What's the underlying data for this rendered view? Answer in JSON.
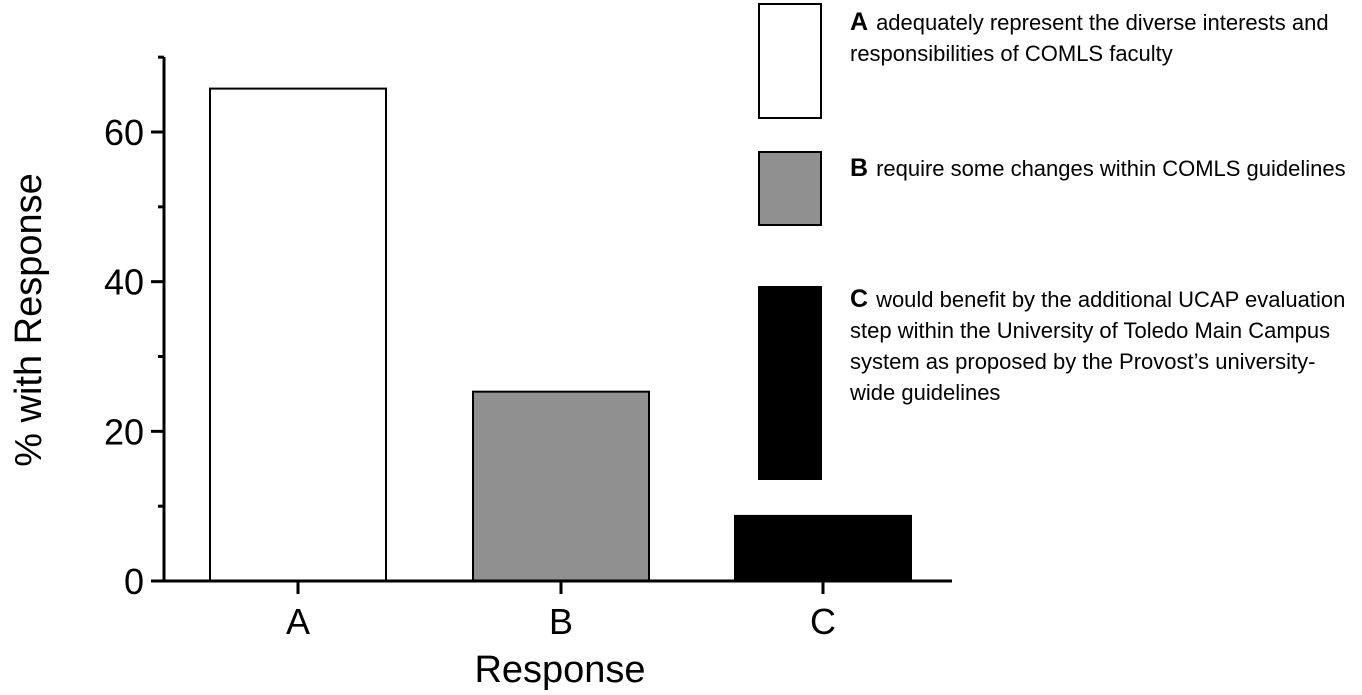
{
  "chart_data": {
    "type": "bar",
    "categories": [
      "A",
      "B",
      "C"
    ],
    "values": [
      65.8,
      25.3,
      8.7
    ],
    "title": "",
    "xlabel": "Response",
    "ylabel": "% with Response",
    "ylim": [
      0,
      70
    ],
    "yticks": [
      0,
      20,
      40,
      60
    ],
    "grid": false,
    "colors": [
      "#ffffff",
      "#909090",
      "#000000"
    ],
    "legend_placement": "right"
  },
  "legend": {
    "items": [
      {
        "key": "A",
        "text": "adequately represent the diverse interests and responsibilities of COMLS faculty",
        "color": "#ffffff"
      },
      {
        "key": "B",
        "text": "require some changes within COMLS guidelines",
        "color": "#909090"
      },
      {
        "key": "C",
        "text": "would benefit by the additional UCAP evaluation step within the University of Toledo Main Campus system as proposed by the Provost’s university-wide guidelines",
        "color": "#000000"
      }
    ]
  }
}
